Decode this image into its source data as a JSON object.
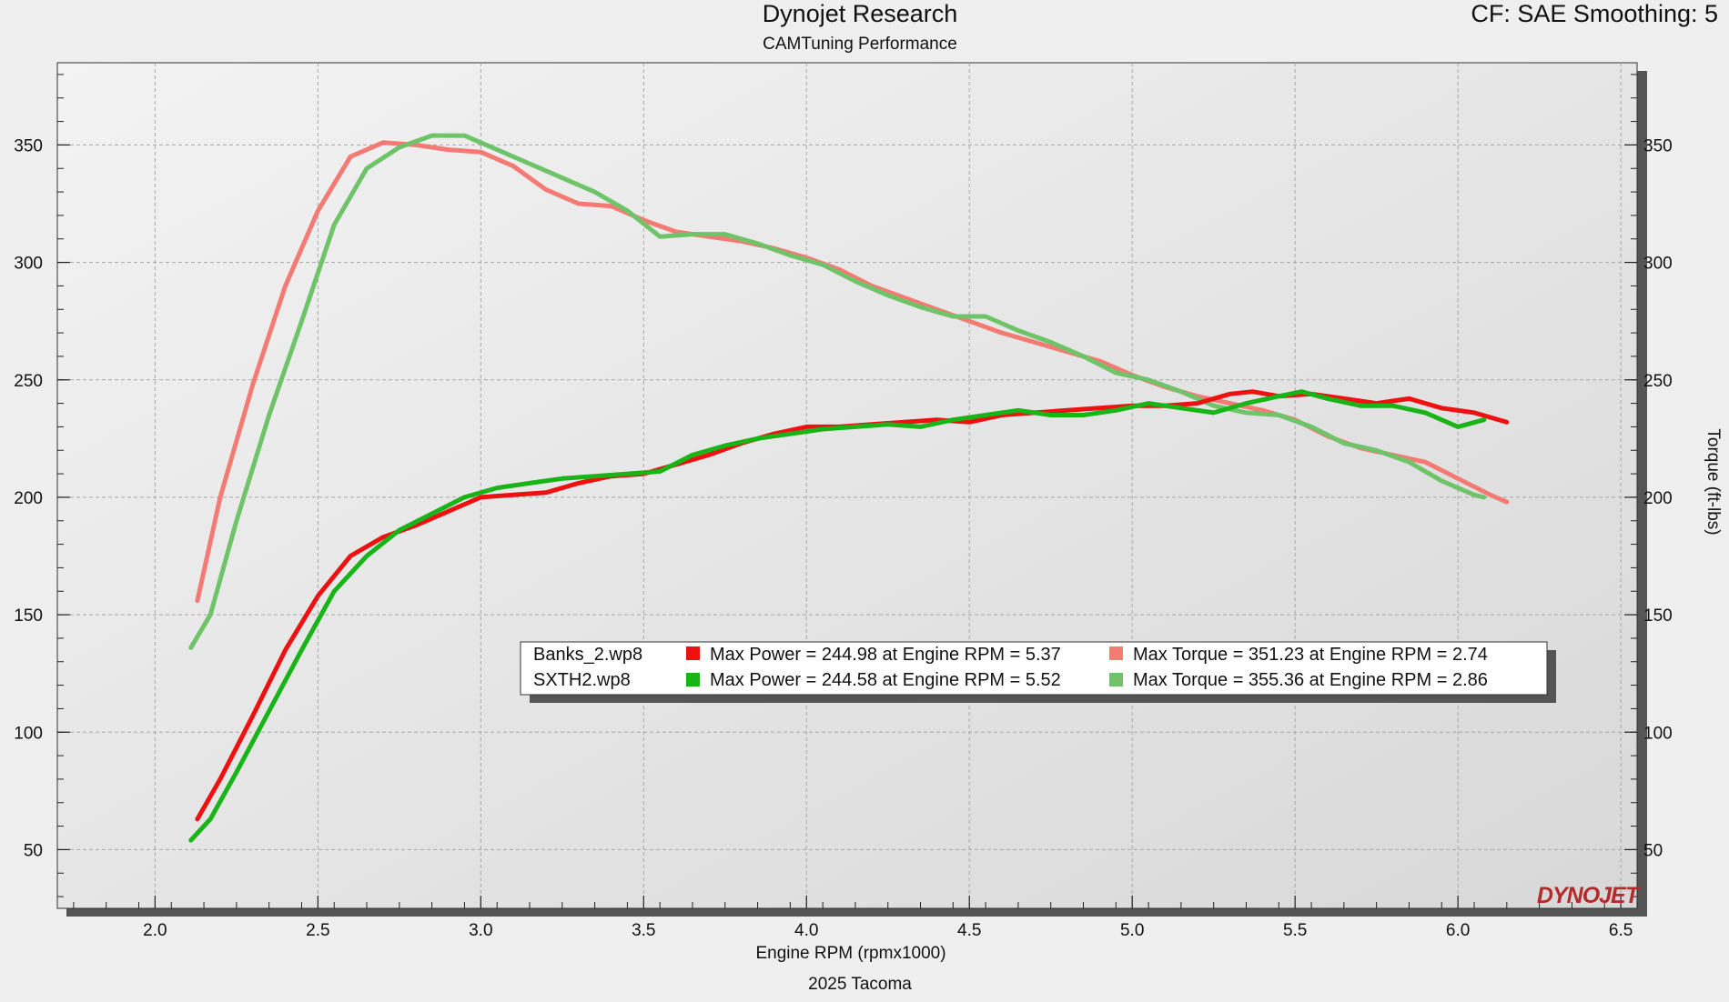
{
  "header": {
    "title": "Dynojet Research",
    "subtitle": "CAMTuning Performance",
    "settings": "CF: SAE Smoothing: 5"
  },
  "footer": {
    "caption": "2025 Tacoma"
  },
  "logo": {
    "text": "DYNOJET"
  },
  "colors": {
    "banks_power": "#ee1111",
    "banks_torque": "#f47a74",
    "sxth_power": "#18b418",
    "sxth_torque": "#6fc46a"
  },
  "legend": {
    "rows": [
      {
        "file": "Banks_2.wp8",
        "power": "Max Power = 244.98 at Engine RPM = 5.37",
        "torque": "Max Torque = 351.23 at Engine RPM = 2.74"
      },
      {
        "file": "SXTH2.wp8",
        "power": "Max Power = 244.58 at Engine RPM = 5.52",
        "torque": "Max Torque = 355.36 at Engine RPM = 2.86"
      }
    ]
  },
  "chart_data": {
    "type": "line",
    "xlabel": "Engine RPM (rpmx1000)",
    "ylabel_right": "Torque (ft-lbs)",
    "xlim": [
      1.7,
      6.55
    ],
    "ylim": [
      25,
      385
    ],
    "x_ticks": [
      "2.0",
      "2.5",
      "3.0",
      "3.5",
      "4.0",
      "4.5",
      "5.0",
      "5.5",
      "6.0",
      "6.5"
    ],
    "y_ticks": [
      "50",
      "100",
      "150",
      "200",
      "250",
      "300",
      "350"
    ],
    "grid": true,
    "series": [
      {
        "name": "Banks_2.wp8 Torque",
        "color": "#f47a74",
        "points": [
          [
            2.13,
            156
          ],
          [
            2.2,
            200
          ],
          [
            2.3,
            248
          ],
          [
            2.4,
            290
          ],
          [
            2.5,
            322
          ],
          [
            2.6,
            345
          ],
          [
            2.7,
            351
          ],
          [
            2.8,
            350
          ],
          [
            2.9,
            348
          ],
          [
            3.0,
            347
          ],
          [
            3.1,
            341
          ],
          [
            3.2,
            331
          ],
          [
            3.3,
            325
          ],
          [
            3.4,
            324
          ],
          [
            3.5,
            318
          ],
          [
            3.6,
            313
          ],
          [
            3.7,
            311
          ],
          [
            3.8,
            309
          ],
          [
            3.9,
            306
          ],
          [
            4.0,
            302
          ],
          [
            4.1,
            297
          ],
          [
            4.2,
            290
          ],
          [
            4.3,
            285
          ],
          [
            4.4,
            280
          ],
          [
            4.5,
            275
          ],
          [
            4.6,
            270
          ],
          [
            4.7,
            266
          ],
          [
            4.8,
            262
          ],
          [
            4.9,
            258
          ],
          [
            5.0,
            252
          ],
          [
            5.1,
            247
          ],
          [
            5.2,
            243
          ],
          [
            5.3,
            240
          ],
          [
            5.4,
            237
          ],
          [
            5.5,
            233
          ],
          [
            5.6,
            226
          ],
          [
            5.7,
            221
          ],
          [
            5.8,
            218
          ],
          [
            5.9,
            215
          ],
          [
            6.0,
            208
          ],
          [
            6.1,
            201
          ],
          [
            6.15,
            198
          ]
        ]
      },
      {
        "name": "SXTH2.wp8 Torque",
        "color": "#6fc46a",
        "points": [
          [
            2.11,
            136
          ],
          [
            2.17,
            150
          ],
          [
            2.25,
            190
          ],
          [
            2.35,
            235
          ],
          [
            2.45,
            275
          ],
          [
            2.55,
            316
          ],
          [
            2.65,
            340
          ],
          [
            2.75,
            349
          ],
          [
            2.85,
            354
          ],
          [
            2.95,
            354
          ],
          [
            3.05,
            348
          ],
          [
            3.15,
            342
          ],
          [
            3.25,
            336
          ],
          [
            3.35,
            330
          ],
          [
            3.45,
            322
          ],
          [
            3.55,
            311
          ],
          [
            3.65,
            312
          ],
          [
            3.75,
            312
          ],
          [
            3.85,
            308
          ],
          [
            3.95,
            303
          ],
          [
            4.05,
            299
          ],
          [
            4.15,
            292
          ],
          [
            4.25,
            286
          ],
          [
            4.35,
            281
          ],
          [
            4.45,
            277
          ],
          [
            4.55,
            277
          ],
          [
            4.65,
            271
          ],
          [
            4.75,
            266
          ],
          [
            4.85,
            260
          ],
          [
            4.95,
            253
          ],
          [
            5.05,
            250
          ],
          [
            5.15,
            245
          ],
          [
            5.25,
            239
          ],
          [
            5.35,
            236
          ],
          [
            5.45,
            235
          ],
          [
            5.55,
            230
          ],
          [
            5.65,
            223
          ],
          [
            5.75,
            220
          ],
          [
            5.85,
            215
          ],
          [
            5.95,
            207
          ],
          [
            6.05,
            201
          ],
          [
            6.08,
            200
          ]
        ]
      },
      {
        "name": "Banks_2.wp8 Power",
        "color": "#ee1111",
        "points": [
          [
            2.13,
            63
          ],
          [
            2.2,
            80
          ],
          [
            2.3,
            107
          ],
          [
            2.4,
            135
          ],
          [
            2.5,
            158
          ],
          [
            2.6,
            175
          ],
          [
            2.7,
            183
          ],
          [
            2.8,
            188
          ],
          [
            2.9,
            194
          ],
          [
            3.0,
            200
          ],
          [
            3.1,
            201
          ],
          [
            3.2,
            202
          ],
          [
            3.3,
            206
          ],
          [
            3.4,
            209
          ],
          [
            3.5,
            210
          ],
          [
            3.6,
            214
          ],
          [
            3.7,
            218
          ],
          [
            3.8,
            223
          ],
          [
            3.9,
            227
          ],
          [
            4.0,
            230
          ],
          [
            4.1,
            230
          ],
          [
            4.2,
            231
          ],
          [
            4.3,
            232
          ],
          [
            4.4,
            233
          ],
          [
            4.5,
            232
          ],
          [
            4.6,
            235
          ],
          [
            4.7,
            236
          ],
          [
            4.8,
            237
          ],
          [
            4.9,
            238
          ],
          [
            5.0,
            239
          ],
          [
            5.1,
            239
          ],
          [
            5.2,
            240
          ],
          [
            5.3,
            244
          ],
          [
            5.37,
            245
          ],
          [
            5.45,
            243
          ],
          [
            5.55,
            244
          ],
          [
            5.65,
            242
          ],
          [
            5.75,
            240
          ],
          [
            5.85,
            242
          ],
          [
            5.95,
            238
          ],
          [
            6.05,
            236
          ],
          [
            6.15,
            232
          ]
        ]
      },
      {
        "name": "SXTH2.wp8 Power",
        "color": "#18b418",
        "points": [
          [
            2.11,
            54
          ],
          [
            2.17,
            63
          ],
          [
            2.25,
            83
          ],
          [
            2.35,
            109
          ],
          [
            2.45,
            135
          ],
          [
            2.55,
            160
          ],
          [
            2.65,
            175
          ],
          [
            2.75,
            186
          ],
          [
            2.85,
            193
          ],
          [
            2.95,
            200
          ],
          [
            3.05,
            204
          ],
          [
            3.15,
            206
          ],
          [
            3.25,
            208
          ],
          [
            3.35,
            209
          ],
          [
            3.45,
            210
          ],
          [
            3.55,
            211
          ],
          [
            3.65,
            218
          ],
          [
            3.75,
            222
          ],
          [
            3.85,
            225
          ],
          [
            3.95,
            227
          ],
          [
            4.05,
            229
          ],
          [
            4.15,
            230
          ],
          [
            4.25,
            231
          ],
          [
            4.35,
            230
          ],
          [
            4.45,
            233
          ],
          [
            4.55,
            235
          ],
          [
            4.65,
            237
          ],
          [
            4.75,
            235
          ],
          [
            4.85,
            235
          ],
          [
            4.95,
            237
          ],
          [
            5.05,
            240
          ],
          [
            5.15,
            238
          ],
          [
            5.25,
            236
          ],
          [
            5.35,
            240
          ],
          [
            5.45,
            243
          ],
          [
            5.52,
            245
          ],
          [
            5.6,
            242
          ],
          [
            5.7,
            239
          ],
          [
            5.8,
            239
          ],
          [
            5.9,
            236
          ],
          [
            6.0,
            230
          ],
          [
            6.08,
            233
          ]
        ]
      }
    ]
  }
}
